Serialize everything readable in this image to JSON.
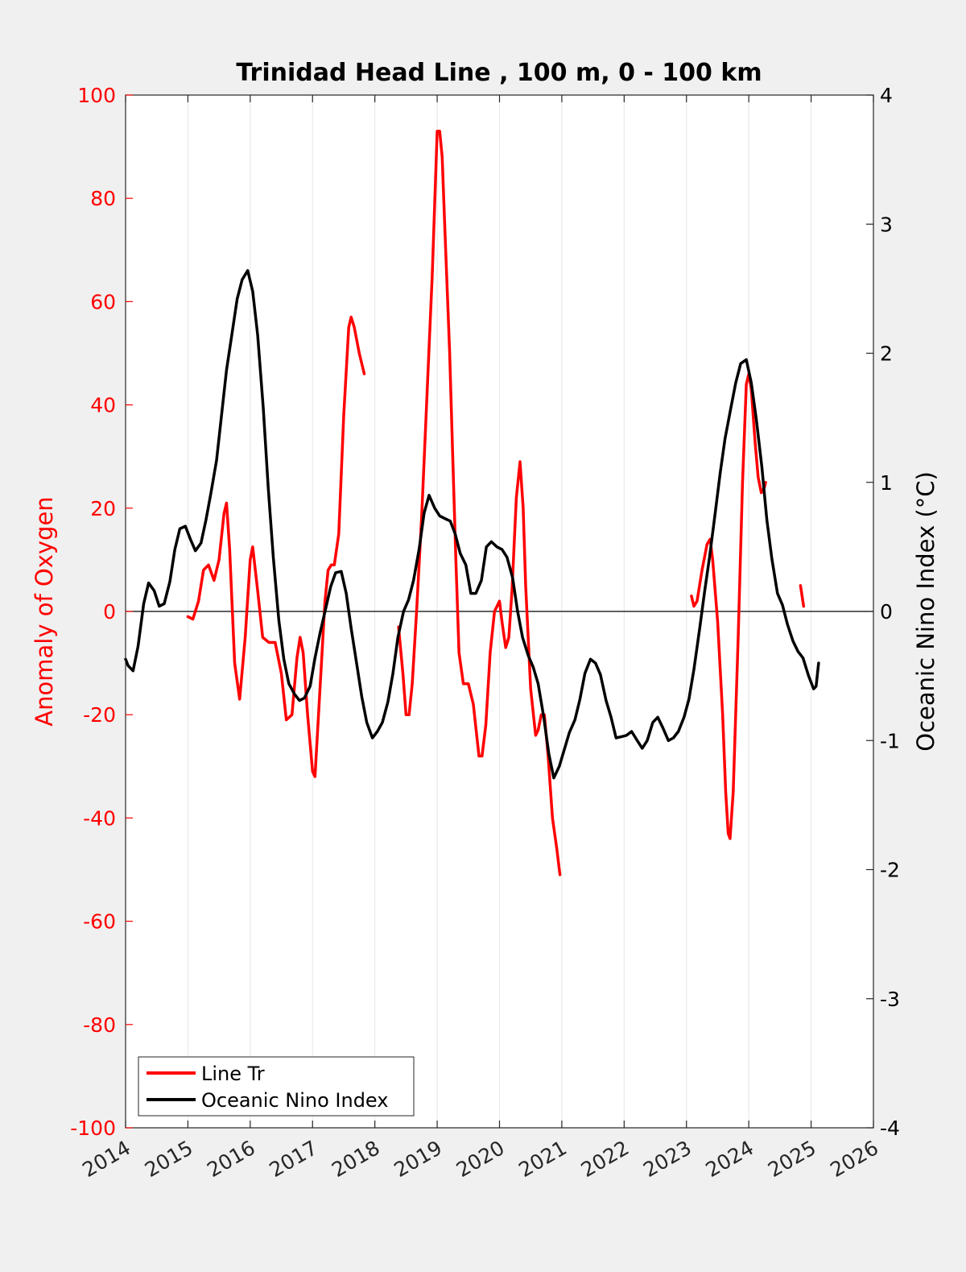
{
  "chart_data": {
    "type": "line",
    "title": "Trinidad Head Line , 100 m, 0 - 100 km",
    "ylabel_left": "Anomaly of Oxygen",
    "ylabel_right": "Oceanic Nino Index (°C)",
    "xlim": [
      2014,
      2026
    ],
    "ylim_left": [
      -100,
      100
    ],
    "ylim_right": [
      -4,
      4
    ],
    "x_ticks": [
      "2014",
      "2015",
      "2016",
      "2017",
      "2018",
      "2019",
      "2020",
      "2021",
      "2022",
      "2023",
      "2024",
      "2025",
      "2026"
    ],
    "y_ticks_left": [
      "100",
      "80",
      "60",
      "40",
      "20",
      "0",
      "-20",
      "-40",
      "-60",
      "-80",
      "-100"
    ],
    "y_ticks_right": [
      "4",
      "3",
      "2",
      "1",
      "0",
      "-1",
      "-2",
      "-3",
      "-4"
    ],
    "grid": "vertical",
    "legend_position": "bottom-left",
    "colors": {
      "oxygen": "#ff0000",
      "oni": "#000000",
      "left_axis": "#ff0000",
      "right_axis": "#000000"
    },
    "series": [
      {
        "name": "Line Tr",
        "axis": "left",
        "segments": [
          [
            [
              2015.0,
              -1
            ],
            [
              2015.08,
              -1.5
            ],
            [
              2015.17,
              2
            ],
            [
              2015.25,
              8
            ],
            [
              2015.33,
              9
            ],
            [
              2015.42,
              6
            ],
            [
              2015.5,
              10
            ],
            [
              2015.58,
              19
            ],
            [
              2015.62,
              21
            ],
            [
              2015.67,
              12
            ],
            [
              2015.75,
              -10
            ],
            [
              2015.83,
              -17
            ],
            [
              2015.92,
              -5
            ],
            [
              2016.0,
              10
            ],
            [
              2016.04,
              12.5
            ],
            [
              2016.12,
              4
            ],
            [
              2016.2,
              -5
            ],
            [
              2016.3,
              -6
            ],
            [
              2016.4,
              -6
            ],
            [
              2016.5,
              -12
            ],
            [
              2016.58,
              -21
            ],
            [
              2016.67,
              -20
            ],
            [
              2016.75,
              -9
            ],
            [
              2016.8,
              -5
            ],
            [
              2016.85,
              -8
            ],
            [
              2016.92,
              -20
            ],
            [
              2017.0,
              -31
            ],
            [
              2017.04,
              -32
            ],
            [
              2017.12,
              -15
            ],
            [
              2017.2,
              2
            ],
            [
              2017.25,
              8
            ],
            [
              2017.3,
              9
            ],
            [
              2017.35,
              9
            ],
            [
              2017.42,
              15
            ],
            [
              2017.5,
              38
            ],
            [
              2017.58,
              55
            ],
            [
              2017.62,
              57
            ],
            [
              2017.67,
              55
            ],
            [
              2017.75,
              50
            ],
            [
              2017.83,
              46
            ]
          ],
          [
            [
              2018.38,
              -3
            ],
            [
              2018.45,
              -12
            ],
            [
              2018.5,
              -20
            ],
            [
              2018.55,
              -20
            ],
            [
              2018.6,
              -14
            ],
            [
              2018.67,
              0
            ],
            [
              2018.75,
              18
            ],
            [
              2018.83,
              40
            ],
            [
              2018.92,
              65
            ],
            [
              2019.0,
              93
            ],
            [
              2019.04,
              93
            ],
            [
              2019.08,
              88
            ],
            [
              2019.12,
              75
            ],
            [
              2019.2,
              50
            ],
            [
              2019.25,
              30
            ],
            [
              2019.3,
              10
            ],
            [
              2019.35,
              -8
            ],
            [
              2019.42,
              -14
            ],
            [
              2019.5,
              -14
            ],
            [
              2019.58,
              -18
            ],
            [
              2019.67,
              -28
            ],
            [
              2019.72,
              -28
            ],
            [
              2019.78,
              -22
            ],
            [
              2019.85,
              -8
            ],
            [
              2019.92,
              0
            ],
            [
              2020.0,
              2
            ],
            [
              2020.04,
              -2
            ],
            [
              2020.1,
              -7
            ],
            [
              2020.15,
              -5
            ],
            [
              2020.2,
              4
            ],
            [
              2020.27,
              22
            ],
            [
              2020.33,
              29
            ],
            [
              2020.38,
              20
            ],
            [
              2020.42,
              5
            ],
            [
              2020.5,
              -15
            ],
            [
              2020.58,
              -24
            ],
            [
              2020.62,
              -23
            ],
            [
              2020.67,
              -20
            ],
            [
              2020.72,
              -20
            ],
            [
              2020.78,
              -28
            ],
            [
              2020.85,
              -40
            ],
            [
              2020.92,
              -46
            ],
            [
              2020.97,
              -51
            ]
          ],
          [
            [
              2023.08,
              3
            ],
            [
              2023.12,
              1
            ],
            [
              2023.17,
              2
            ],
            [
              2023.25,
              8
            ],
            [
              2023.33,
              13
            ],
            [
              2023.38,
              14
            ],
            [
              2023.42,
              10
            ],
            [
              2023.5,
              -2
            ],
            [
              2023.58,
              -20
            ],
            [
              2023.63,
              -35
            ],
            [
              2023.67,
              -43
            ],
            [
              2023.7,
              -44
            ],
            [
              2023.75,
              -35
            ],
            [
              2023.83,
              -5
            ],
            [
              2023.9,
              25
            ],
            [
              2023.96,
              44
            ],
            [
              2024.0,
              46
            ],
            [
              2024.04,
              43
            ],
            [
              2024.1,
              33
            ],
            [
              2024.15,
              26
            ],
            [
              2024.2,
              23
            ],
            [
              2024.25,
              24
            ],
            [
              2024.27,
              25
            ]
          ],
          [
            [
              2024.83,
              5
            ],
            [
              2024.88,
              1
            ]
          ]
        ]
      },
      {
        "name": "Oceanic Nino Index",
        "axis": "right",
        "segments": [
          [
            [
              2014.0,
              -0.37
            ],
            [
              2014.04,
              -0.42
            ],
            [
              2014.12,
              -0.46
            ],
            [
              2014.2,
              -0.27
            ],
            [
              2014.29,
              0.06
            ],
            [
              2014.37,
              0.22
            ],
            [
              2014.46,
              0.16
            ],
            [
              2014.54,
              0.04
            ],
            [
              2014.62,
              0.06
            ],
            [
              2014.71,
              0.23
            ],
            [
              2014.79,
              0.48
            ],
            [
              2014.87,
              0.64
            ],
            [
              2014.96,
              0.66
            ],
            [
              2015.04,
              0.56
            ],
            [
              2015.12,
              0.47
            ],
            [
              2015.21,
              0.53
            ],
            [
              2015.29,
              0.71
            ],
            [
              2015.37,
              0.92
            ],
            [
              2015.46,
              1.17
            ],
            [
              2015.54,
              1.52
            ],
            [
              2015.62,
              1.87
            ],
            [
              2015.71,
              2.16
            ],
            [
              2015.79,
              2.42
            ],
            [
              2015.87,
              2.57
            ],
            [
              2015.96,
              2.64
            ],
            [
              2016.04,
              2.48
            ],
            [
              2016.12,
              2.14
            ],
            [
              2016.21,
              1.57
            ],
            [
              2016.29,
              0.95
            ],
            [
              2016.37,
              0.42
            ],
            [
              2016.46,
              -0.07
            ],
            [
              2016.54,
              -0.37
            ],
            [
              2016.62,
              -0.56
            ],
            [
              2016.71,
              -0.64
            ],
            [
              2016.79,
              -0.69
            ],
            [
              2016.87,
              -0.67
            ],
            [
              2016.96,
              -0.58
            ],
            [
              2017.04,
              -0.36
            ],
            [
              2017.12,
              -0.17
            ],
            [
              2017.21,
              0.02
            ],
            [
              2017.29,
              0.19
            ],
            [
              2017.37,
              0.3
            ],
            [
              2017.46,
              0.31
            ],
            [
              2017.54,
              0.14
            ],
            [
              2017.62,
              -0.13
            ],
            [
              2017.71,
              -0.41
            ],
            [
              2017.79,
              -0.66
            ],
            [
              2017.87,
              -0.86
            ],
            [
              2017.96,
              -0.98
            ],
            [
              2018.04,
              -0.93
            ],
            [
              2018.12,
              -0.86
            ],
            [
              2018.21,
              -0.7
            ],
            [
              2018.29,
              -0.48
            ],
            [
              2018.37,
              -0.2
            ],
            [
              2018.46,
              0.0
            ],
            [
              2018.54,
              0.09
            ],
            [
              2018.62,
              0.24
            ],
            [
              2018.71,
              0.48
            ],
            [
              2018.79,
              0.76
            ],
            [
              2018.87,
              0.9
            ],
            [
              2018.96,
              0.8
            ],
            [
              2019.04,
              0.74
            ],
            [
              2019.12,
              0.72
            ],
            [
              2019.21,
              0.7
            ],
            [
              2019.29,
              0.6
            ],
            [
              2019.37,
              0.45
            ],
            [
              2019.46,
              0.36
            ],
            [
              2019.54,
              0.14
            ],
            [
              2019.62,
              0.14
            ],
            [
              2019.71,
              0.24
            ],
            [
              2019.79,
              0.5
            ],
            [
              2019.87,
              0.54
            ],
            [
              2019.96,
              0.5
            ],
            [
              2020.04,
              0.48
            ],
            [
              2020.12,
              0.42
            ],
            [
              2020.21,
              0.26
            ],
            [
              2020.29,
              0.0
            ],
            [
              2020.37,
              -0.2
            ],
            [
              2020.46,
              -0.34
            ],
            [
              2020.54,
              -0.43
            ],
            [
              2020.62,
              -0.56
            ],
            [
              2020.71,
              -0.82
            ],
            [
              2020.79,
              -1.1
            ],
            [
              2020.87,
              -1.29
            ],
            [
              2020.96,
              -1.2
            ],
            [
              2021.04,
              -1.07
            ],
            [
              2021.12,
              -0.94
            ],
            [
              2021.21,
              -0.84
            ],
            [
              2021.29,
              -0.68
            ],
            [
              2021.37,
              -0.48
            ],
            [
              2021.46,
              -0.37
            ],
            [
              2021.54,
              -0.4
            ],
            [
              2021.62,
              -0.49
            ],
            [
              2021.71,
              -0.69
            ],
            [
              2021.79,
              -0.82
            ],
            [
              2021.87,
              -0.98
            ],
            [
              2021.96,
              -0.97
            ],
            [
              2022.04,
              -0.96
            ],
            [
              2022.12,
              -0.93
            ],
            [
              2022.21,
              -1.0
            ],
            [
              2022.29,
              -1.06
            ],
            [
              2022.37,
              -1.0
            ],
            [
              2022.46,
              -0.86
            ],
            [
              2022.54,
              -0.82
            ],
            [
              2022.62,
              -0.9
            ],
            [
              2022.71,
              -1.0
            ],
            [
              2022.79,
              -0.98
            ],
            [
              2022.87,
              -0.93
            ],
            [
              2022.96,
              -0.82
            ],
            [
              2023.04,
              -0.68
            ],
            [
              2023.12,
              -0.45
            ],
            [
              2023.21,
              -0.14
            ],
            [
              2023.29,
              0.15
            ],
            [
              2023.37,
              0.42
            ],
            [
              2023.46,
              0.76
            ],
            [
              2023.54,
              1.07
            ],
            [
              2023.62,
              1.34
            ],
            [
              2023.71,
              1.57
            ],
            [
              2023.79,
              1.77
            ],
            [
              2023.87,
              1.92
            ],
            [
              2023.96,
              1.95
            ],
            [
              2024.04,
              1.77
            ],
            [
              2024.12,
              1.49
            ],
            [
              2024.21,
              1.12
            ],
            [
              2024.29,
              0.71
            ],
            [
              2024.37,
              0.41
            ],
            [
              2024.46,
              0.14
            ],
            [
              2024.54,
              0.05
            ],
            [
              2024.62,
              -0.1
            ],
            [
              2024.71,
              -0.23
            ],
            [
              2024.79,
              -0.31
            ],
            [
              2024.87,
              -0.36
            ],
            [
              2024.96,
              -0.5
            ],
            [
              2025.04,
              -0.6
            ],
            [
              2025.08,
              -0.58
            ],
            [
              2025.12,
              -0.4
            ]
          ]
        ]
      }
    ]
  }
}
